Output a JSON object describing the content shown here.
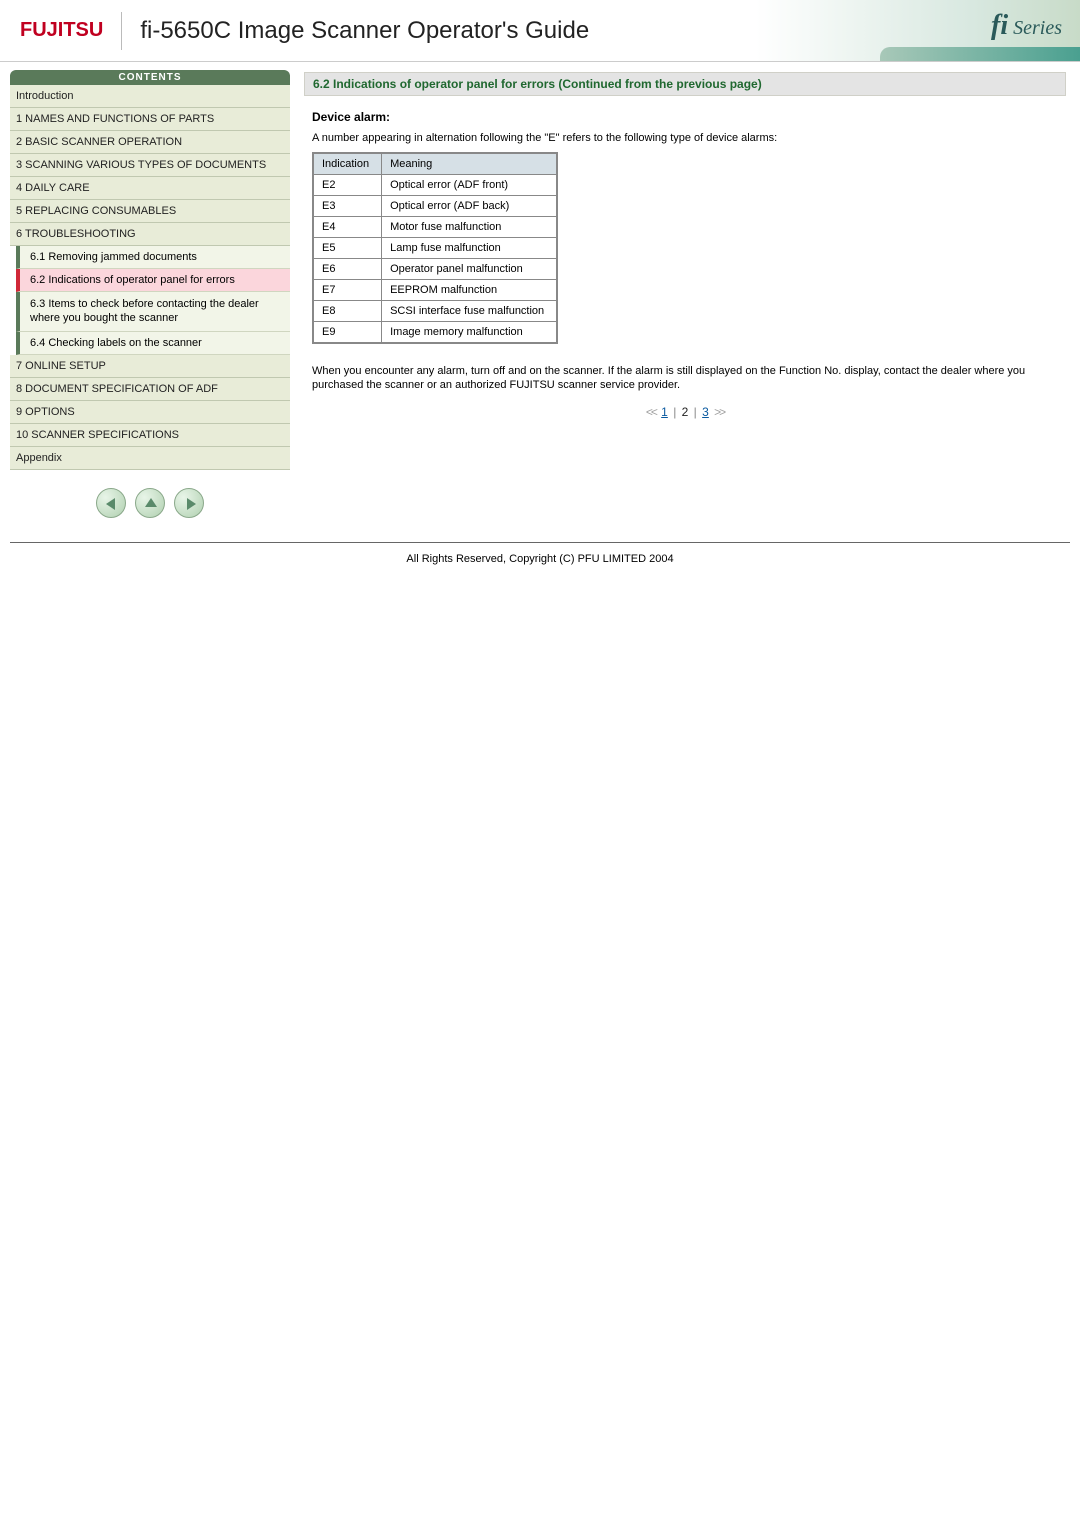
{
  "header": {
    "logo_text": "FUJITSU",
    "title": "fi-5650C Image Scanner Operator's Guide",
    "series_label": "fi Series"
  },
  "sidebar": {
    "header": "CONTENTS",
    "items": [
      "Introduction",
      "1 NAMES AND FUNCTIONS OF PARTS",
      "2 BASIC SCANNER OPERATION",
      "3 SCANNING VARIOUS TYPES OF DOCUMENTS",
      "4 DAILY CARE",
      "5 REPLACING CONSUMABLES",
      "6 TROUBLESHOOTING"
    ],
    "sub6": [
      "6.1 Removing jammed documents",
      "6.2 Indications of operator panel for errors",
      "6.3 Items to check before contacting the dealer where you bought the scanner",
      "6.4 Checking labels on the scanner"
    ],
    "items_after": [
      "7 ONLINE SETUP",
      "8 DOCUMENT SPECIFICATION OF ADF",
      "9 OPTIONS",
      "10 SCANNER SPECIFICATIONS",
      "Appendix"
    ]
  },
  "main": {
    "section_title": "6.2 Indications of operator panel for errors (Continued from the previous page)",
    "subheading": "Device alarm:",
    "lead": "A number appearing in alternation following the \"E\" refers to the following type of device alarms:",
    "table": {
      "headers": [
        "Indication",
        "Meaning"
      ],
      "rows": [
        [
          "E2",
          "Optical error (ADF front)"
        ],
        [
          "E3",
          "Optical error (ADF back)"
        ],
        [
          "E4",
          "Motor fuse malfunction"
        ],
        [
          "E5",
          "Lamp fuse malfunction"
        ],
        [
          "E6",
          "Operator panel malfunction"
        ],
        [
          "E7",
          "EEPROM malfunction"
        ],
        [
          "E8",
          "SCSI interface fuse malfunction"
        ],
        [
          "E9",
          "Image memory malfunction"
        ]
      ]
    },
    "note": "When you encounter any alarm, turn off and on the scanner. If the alarm is still displayed on the Function No. display, contact the dealer where you purchased the scanner or an authorized FUJITSU scanner service provider.",
    "pager": {
      "prev": "<<",
      "pages": [
        "1",
        "2",
        "3"
      ],
      "current": "2",
      "next": ">>"
    }
  },
  "footer": {
    "text": "All Rights Reserved, Copyright (C) PFU LIMITED 2004"
  },
  "colors": {
    "brand_red": "#c00020",
    "section_green": "#206830",
    "toc_bg": "#e8ecd8",
    "toc_active_bg": "#fbd6dc",
    "toc_active_border": "#d02838",
    "table_header_bg": "#d6e0e6"
  }
}
